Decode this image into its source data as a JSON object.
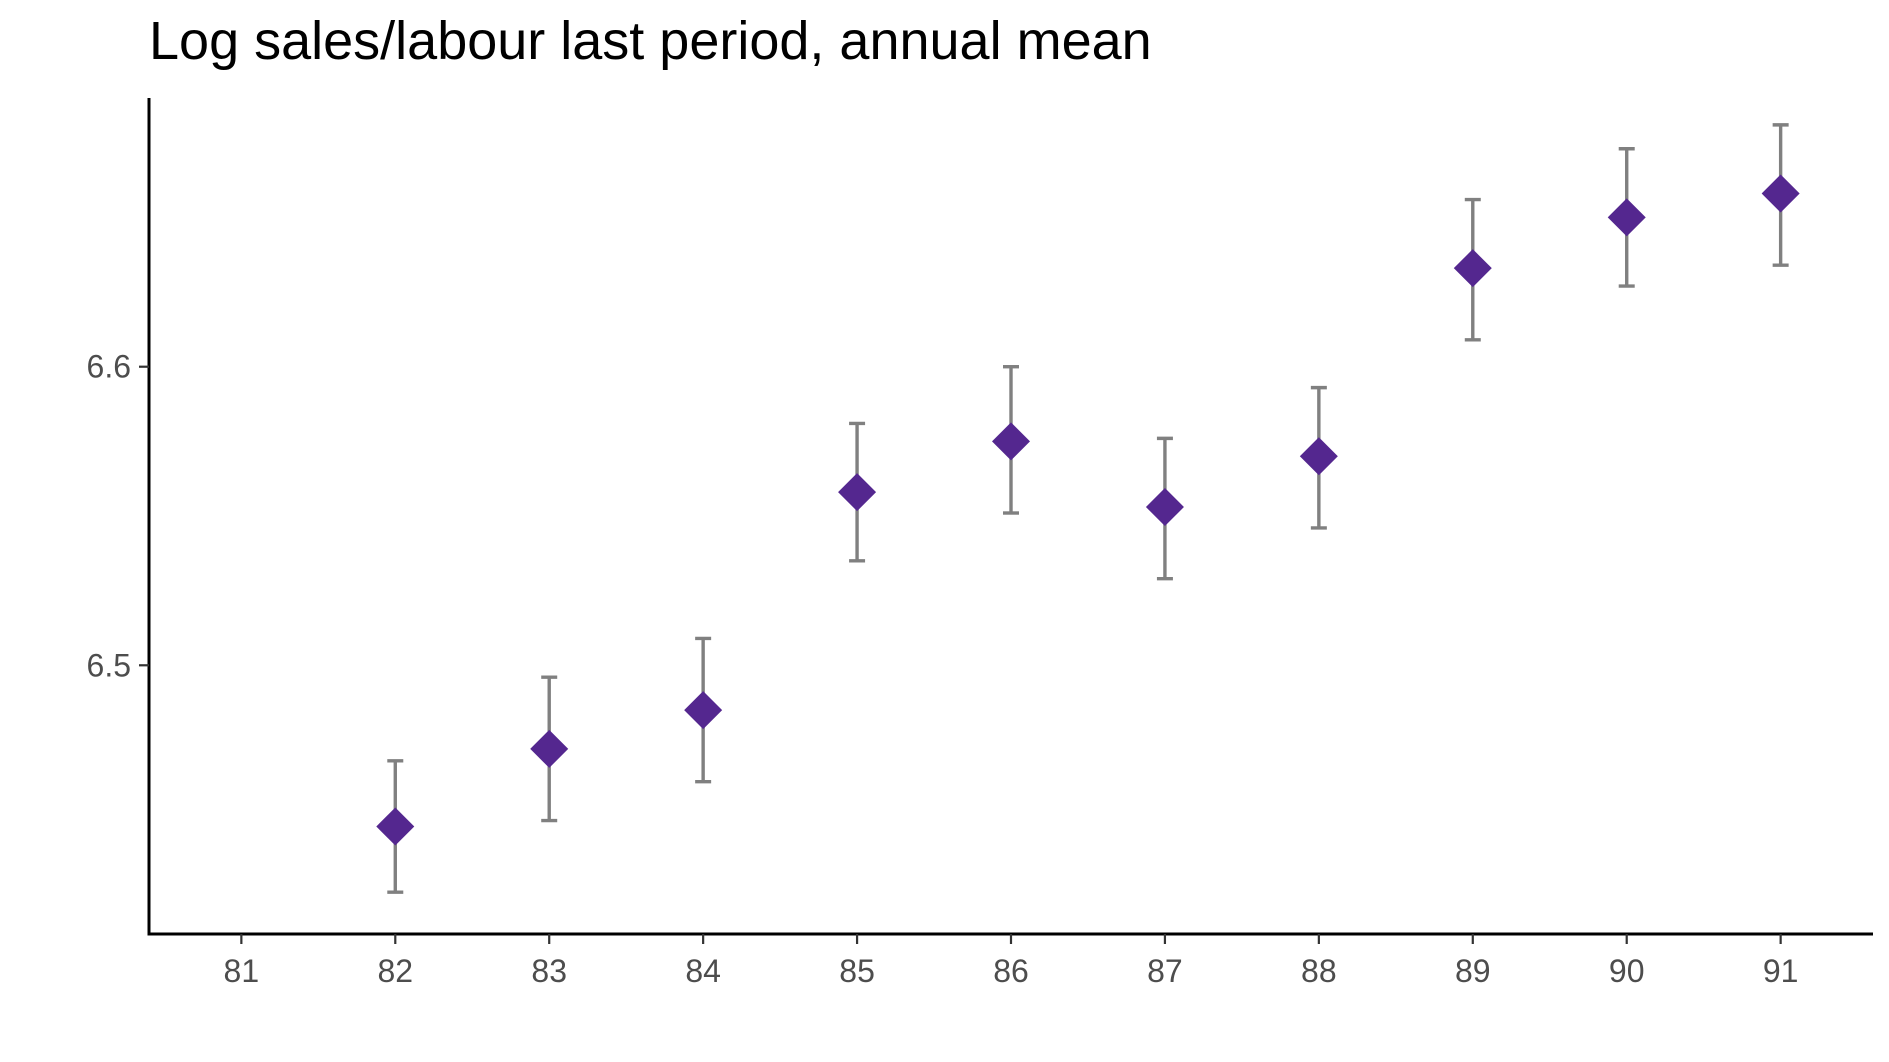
{
  "chart_data": {
    "type": "scatter",
    "title": "Log sales/labour last period, annual mean",
    "xlabel": "",
    "ylabel": "",
    "x_ticks": [
      "81",
      "82",
      "83",
      "84",
      "85",
      "86",
      "87",
      "88",
      "89",
      "90",
      "91"
    ],
    "y_ticks": [
      {
        "value": 6.5,
        "label": "6.5"
      },
      {
        "value": 6.6,
        "label": "6.6"
      }
    ],
    "xlim": [
      80.4,
      91.6
    ],
    "ylim": [
      6.41,
      6.69
    ],
    "grid": false,
    "legend": "none",
    "marker_shape": "diamond",
    "marker_color": "#54278f",
    "errorbar_color": "#808080",
    "axis_color": "#000000",
    "points": [
      {
        "x": 82,
        "y": 6.446,
        "lower": 6.424,
        "upper": 6.468
      },
      {
        "x": 83,
        "y": 6.472,
        "lower": 6.448,
        "upper": 6.496
      },
      {
        "x": 84,
        "y": 6.485,
        "lower": 6.461,
        "upper": 6.509
      },
      {
        "x": 85,
        "y": 6.558,
        "lower": 6.535,
        "upper": 6.581
      },
      {
        "x": 86,
        "y": 6.575,
        "lower": 6.551,
        "upper": 6.6
      },
      {
        "x": 87,
        "y": 6.553,
        "lower": 6.529,
        "upper": 6.576
      },
      {
        "x": 88,
        "y": 6.57,
        "lower": 6.546,
        "upper": 6.593
      },
      {
        "x": 89,
        "y": 6.633,
        "lower": 6.609,
        "upper": 6.656
      },
      {
        "x": 90,
        "y": 6.65,
        "lower": 6.627,
        "upper": 6.673
      },
      {
        "x": 91,
        "y": 6.658,
        "lower": 6.634,
        "upper": 6.681
      }
    ]
  }
}
